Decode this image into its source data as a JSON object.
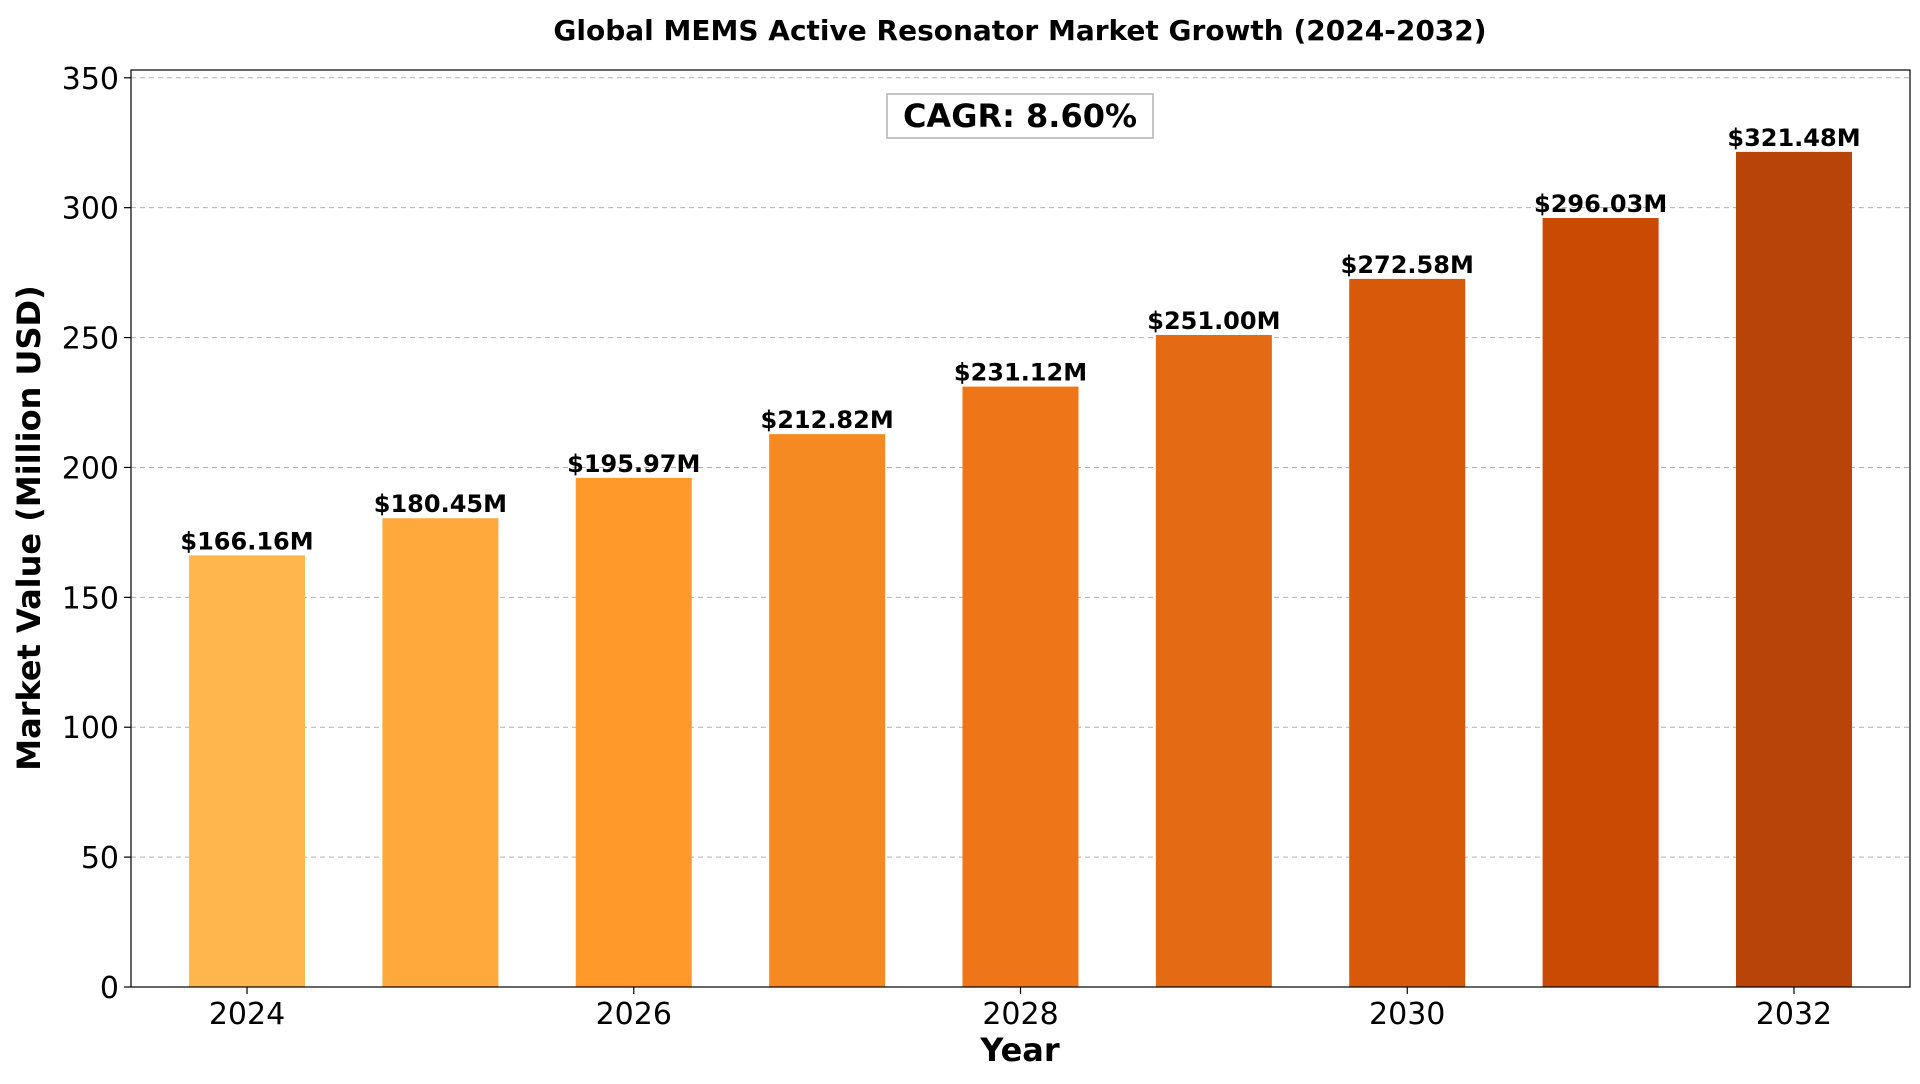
{
  "chart_data": {
    "type": "bar",
    "title": "Global MEMS Active Resonator Market Growth (2024-2032)",
    "xlabel": "Year",
    "ylabel": "Market Value (Million USD)",
    "categories": [
      2024,
      2025,
      2026,
      2027,
      2028,
      2029,
      2030,
      2031,
      2032
    ],
    "values": [
      166.16,
      180.45,
      195.97,
      212.82,
      231.12,
      251.0,
      272.58,
      296.03,
      321.48
    ],
    "data_labels": [
      "$166.16M",
      "$180.45M",
      "$195.97M",
      "$212.82M",
      "$231.12M",
      "$251.00M",
      "$272.58M",
      "$296.03M",
      "$321.48M"
    ],
    "bar_colors": [
      "#FFB74D",
      "#FFA93C",
      "#FF9A2A",
      "#F58A22",
      "#EE7619",
      "#E46A13",
      "#D9590B",
      "#CB4A03",
      "#B84407"
    ],
    "xticks": [
      2024,
      2026,
      2028,
      2030,
      2032
    ],
    "xtick_labels": [
      "2024",
      "2026",
      "2028",
      "2030",
      "2032"
    ],
    "yticks": [
      0,
      50,
      100,
      150,
      200,
      250,
      300,
      350
    ],
    "ytick_labels": [
      "0",
      "50",
      "100",
      "150",
      "200",
      "250",
      "300",
      "350"
    ],
    "ylim": [
      0,
      353
    ],
    "xlim": [
      2023.4,
      2032.6
    ],
    "grid": "y-dashed",
    "annotation": "CAGR: 8.60%"
  }
}
